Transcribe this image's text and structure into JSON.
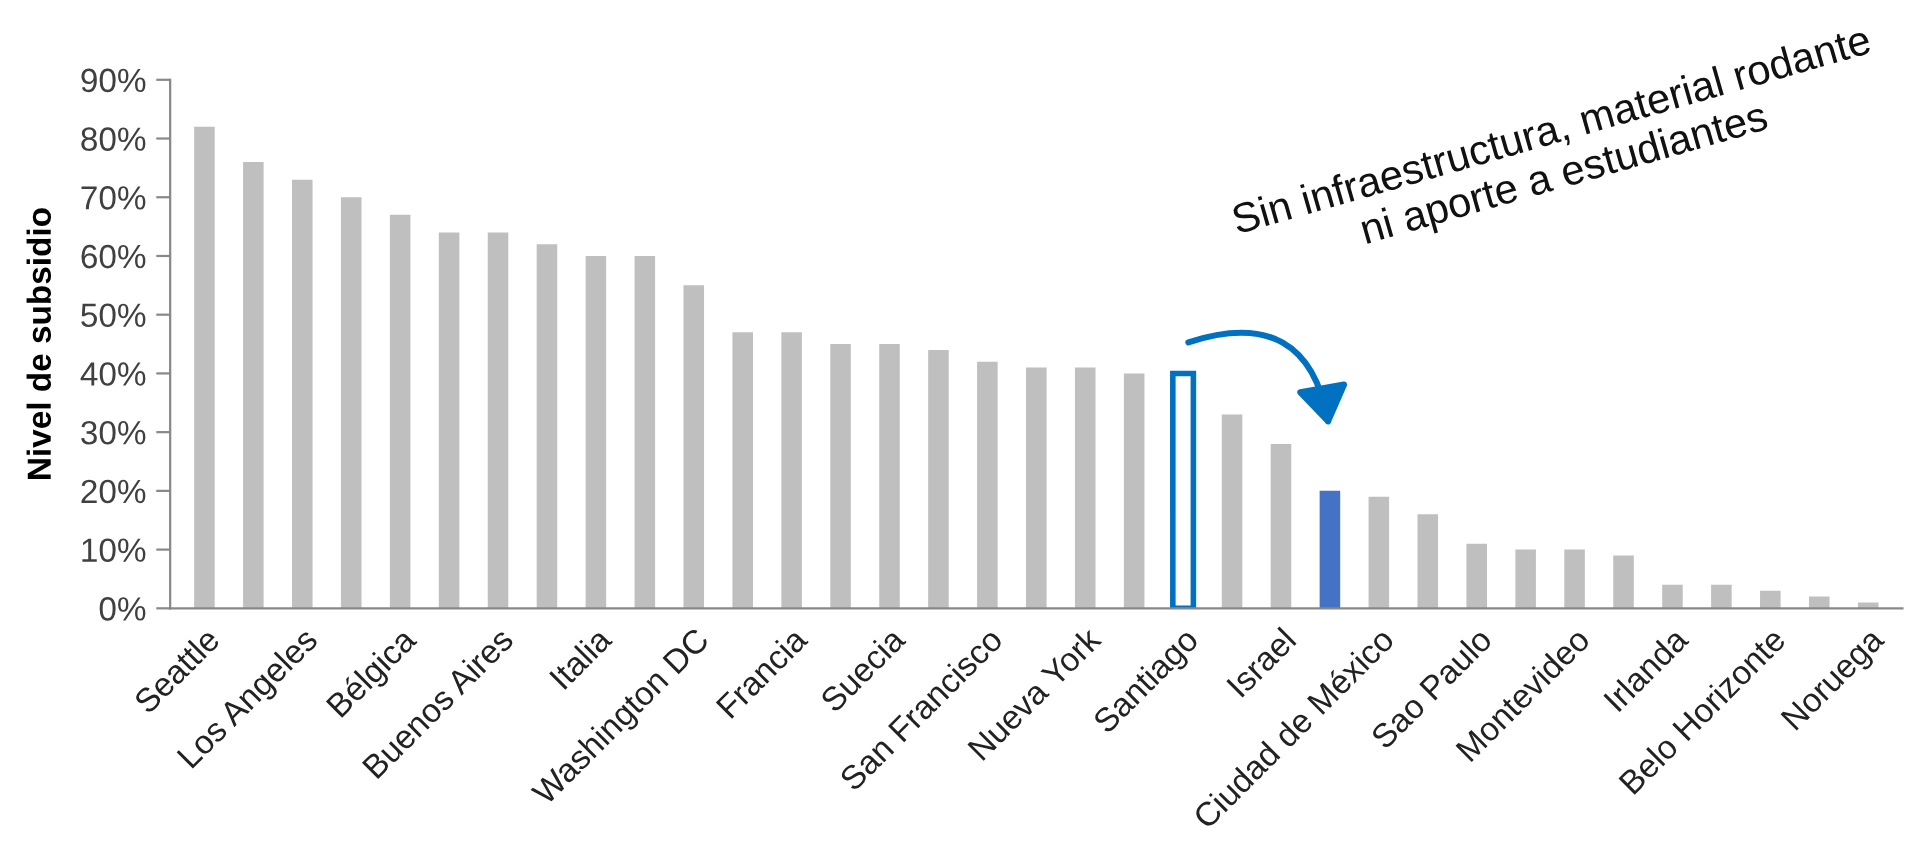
{
  "chart_data": {
    "type": "bar",
    "ylabel": "Nivel de subsidio",
    "categories": [
      "Seattle",
      null,
      "Los Angeles",
      null,
      "Bélgica",
      null,
      "Buenos Aires",
      null,
      "Italia",
      null,
      "Washington DC",
      null,
      "Francia",
      null,
      "Suecia",
      null,
      "San Francisco",
      null,
      "Nueva York",
      null,
      "Santiago",
      null,
      "Israel",
      null,
      "Ciudad de México",
      null,
      "Sao Paulo",
      null,
      "Montevideo",
      null,
      "Irlanda",
      null,
      "Belo Horizonte",
      null,
      "Noruega"
    ],
    "series": [
      {
        "values": [
          82,
          76,
          73,
          70,
          67,
          64,
          64,
          62,
          60,
          60,
          55,
          47,
          47,
          45,
          45,
          44,
          42,
          41,
          41,
          40,
          null,
          33,
          28,
          20,
          19,
          16,
          11,
          10,
          10,
          9,
          4,
          4,
          3,
          2,
          1
        ],
        "colors": [
          "#bfbfbf",
          "#bfbfbf",
          "#bfbfbf",
          "#bfbfbf",
          "#bfbfbf",
          "#bfbfbf",
          "#bfbfbf",
          "#bfbfbf",
          "#bfbfbf",
          "#bfbfbf",
          "#bfbfbf",
          "#bfbfbf",
          "#bfbfbf",
          "#bfbfbf",
          "#bfbfbf",
          "#bfbfbf",
          "#bfbfbf",
          "#bfbfbf",
          "#bfbfbf",
          "#bfbfbf",
          "#bfbfbf",
          "#bfbfbf",
          "#bfbfbf",
          "#4472c4",
          "#bfbfbf",
          "#bfbfbf",
          "#bfbfbf",
          "#bfbfbf",
          "#bfbfbf",
          "#bfbfbf",
          "#bfbfbf",
          "#bfbfbf",
          "#bfbfbf",
          "#bfbfbf",
          "#bfbfbf"
        ]
      },
      {
        "color": "#0070c0",
        "line_style": "solid",
        "values": [
          null,
          null,
          null,
          null,
          null,
          null,
          null,
          null,
          null,
          null,
          null,
          null,
          null,
          null,
          null,
          null,
          null,
          null,
          null,
          null,
          40,
          null,
          null,
          null,
          null,
          null,
          null,
          null,
          null,
          null,
          null,
          null,
          null,
          null,
          null
        ]
      }
    ],
    "ylim": [
      0,
      90
    ],
    "yticks": [
      {
        "value": 0,
        "label": "0%"
      },
      {
        "value": 10,
        "label": "10%"
      },
      {
        "value": 20,
        "label": "20%"
      },
      {
        "value": 30,
        "label": "30%"
      },
      {
        "value": 40,
        "label": "40%"
      },
      {
        "value": 50,
        "label": "50%"
      },
      {
        "value": 60,
        "label": "60%"
      },
      {
        "value": 70,
        "label": "70%"
      },
      {
        "value": 80,
        "label": "80%"
      },
      {
        "value": 90,
        "label": "90%"
      }
    ],
    "annotations": [
      "Sin infraestructura, material rodante\nni aporte a estudiantes"
    ],
    "grid": false,
    "legend": false
  }
}
